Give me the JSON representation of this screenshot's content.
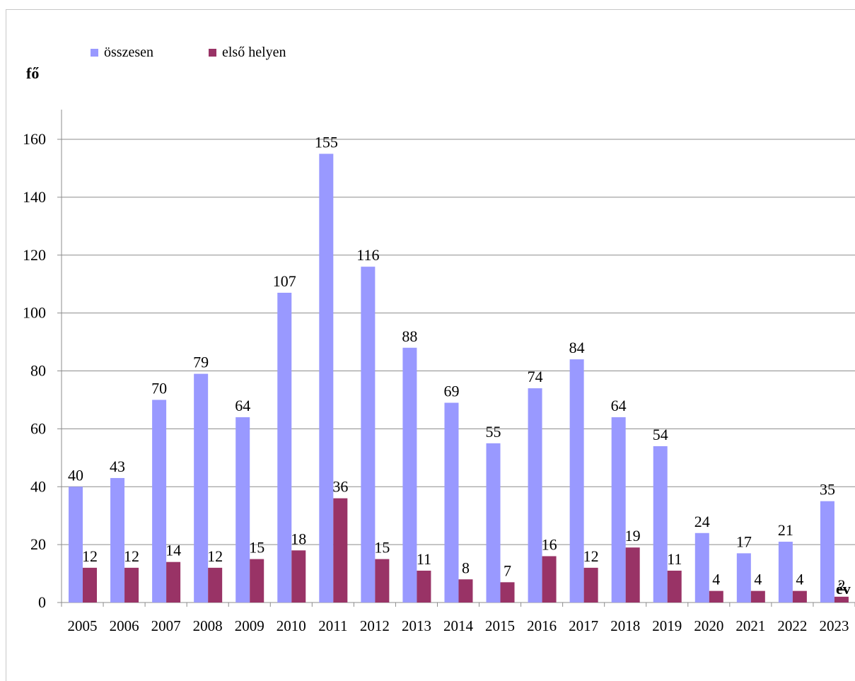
{
  "chart_data": {
    "type": "bar",
    "ylabel": "fő",
    "xlabel": "év",
    "ylim": [
      0,
      160
    ],
    "yticks": [
      0,
      20,
      40,
      60,
      80,
      100,
      120,
      140,
      160
    ],
    "grid": true,
    "legend_position": "top-left",
    "categories": [
      "2005",
      "2006",
      "2007",
      "2008",
      "2009",
      "2010",
      "2011",
      "2012",
      "2013",
      "2014",
      "2015",
      "2016",
      "2017",
      "2018",
      "2019",
      "2020",
      "2021",
      "2022",
      "2023"
    ],
    "series": [
      {
        "name": "összesen",
        "color": "#9999ff",
        "values": [
          40,
          43,
          70,
          79,
          64,
          107,
          155,
          116,
          88,
          69,
          55,
          74,
          84,
          64,
          54,
          24,
          17,
          21,
          35
        ]
      },
      {
        "name": "első helyen",
        "color": "#993366",
        "values": [
          12,
          12,
          14,
          12,
          15,
          18,
          36,
          15,
          11,
          8,
          7,
          16,
          12,
          19,
          11,
          4,
          4,
          4,
          2
        ]
      }
    ]
  }
}
